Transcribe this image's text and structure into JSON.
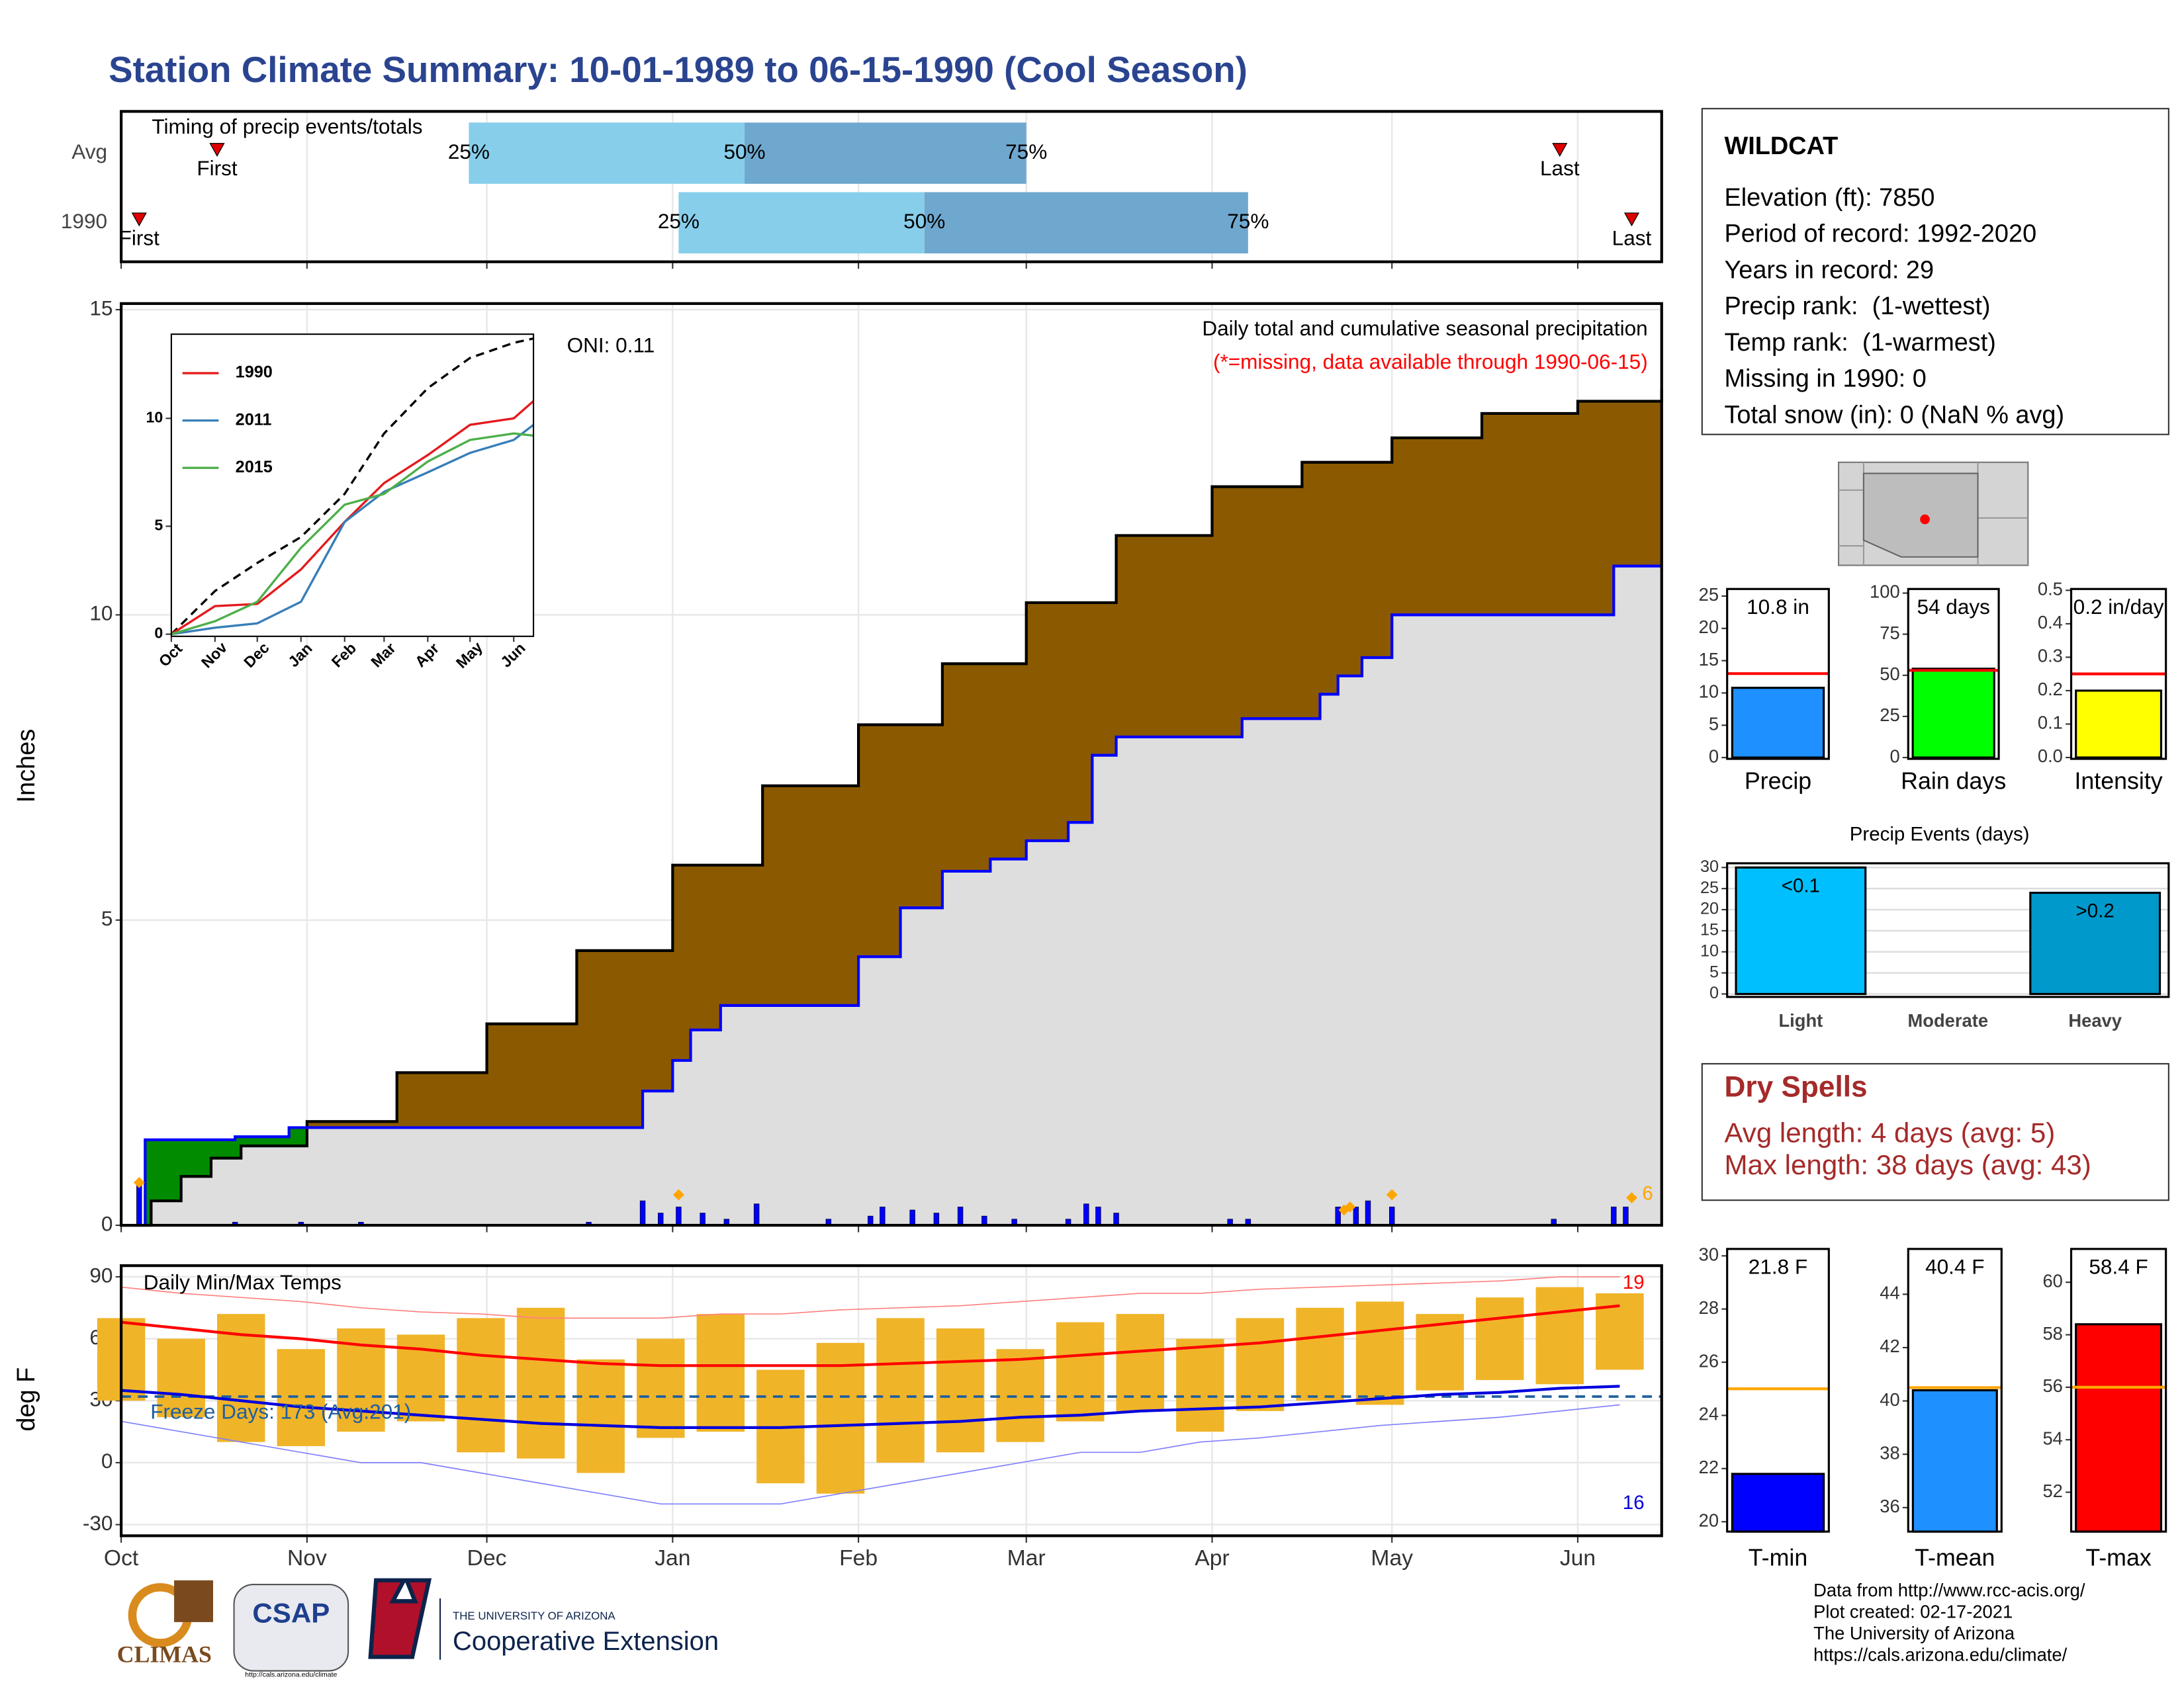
{
  "title": "Station Climate Summary: 10-01-1989 to 06-15-1990 (Cool Season)",
  "station": {
    "name": "WILDCAT",
    "lines": [
      "Elevation (ft): 7850",
      "Period of record: 1992-2020",
      "Years in record: 29",
      "Precip rank:  (1-wettest)",
      "Temp rank:  (1-warmest)",
      "Missing in 1990: 0",
      "Total snow (in): 0 (NaN % avg)"
    ]
  },
  "dry_spells": {
    "title": "Dry Spells",
    "lines": [
      "Avg length: 4 days (avg: 5)",
      "Max length: 38 days (avg: 43)"
    ]
  },
  "footer": [
    "Data from http://www.rcc-acis.org/",
    "Plot created: 02-17-2021",
    "The University of Arizona",
    "https://cals.arizona.edu/climate/"
  ],
  "logos": {
    "climas": "CLIMAS",
    "csap": "CSAP",
    "csap_url": "http://cals.arizona.edu/climate",
    "university": "THE UNIVERSITY OF ARIZONA",
    "extension": "Cooperative Extension"
  },
  "chart_data": [
    {
      "type": "timeline",
      "title": "Timing of precip events/totals",
      "categories": [
        "Avg",
        "1990"
      ],
      "labels": [
        "First",
        "25%",
        "50%",
        "75%",
        "Last"
      ],
      "rows": [
        [
          16,
          58,
          104,
          151,
          240
        ],
        [
          3,
          93,
          134,
          188,
          252
        ]
      ],
      "colors": [
        "#87ceeb",
        "#6fa8cf"
      ],
      "marker_color": "#e00000",
      "xlim": [
        0,
        257
      ],
      "xticks": [
        0,
        31,
        61,
        92,
        123,
        151,
        182,
        212,
        243
      ],
      "grid": true
    },
    {
      "type": "step-area",
      "ylabel": "Inches",
      "subtitle": "Daily total and cumulative seasonal precipitation",
      "note": "(*=missing, data available through 1990-06-15)",
      "oni": "ONI: 0.11",
      "flag_label": "6",
      "xlim": [
        0,
        257
      ],
      "xticks": [
        0,
        31,
        61,
        92,
        123,
        151,
        182,
        212,
        243
      ],
      "ylim": [
        0,
        15.1
      ],
      "yticks": [
        0,
        5,
        10,
        15
      ],
      "grid": true,
      "series": [
        {
          "kind": "step",
          "color": "#000000",
          "fill": "#8b5a00",
          "x": [
            0,
            5,
            10,
            15,
            20,
            31,
            46,
            61,
            76,
            92,
            107,
            123,
            137,
            151,
            166,
            182,
            197,
            212,
            227,
            243,
            257
          ],
          "values": [
            0,
            0.4,
            0.8,
            1.1,
            1.3,
            1.7,
            2.5,
            3.3,
            4.5,
            5.9,
            7.2,
            8.2,
            9.2,
            10.2,
            11.3,
            12.1,
            12.5,
            12.9,
            13.3,
            13.5,
            13.7
          ]
        },
        {
          "kind": "step",
          "color": "#0000ff",
          "fill": "#dedede",
          "fill_above": "#008b00",
          "x": [
            0,
            4,
            19,
            28,
            87,
            92,
            95,
            100,
            123,
            130,
            137,
            145,
            151,
            158,
            162,
            166,
            187,
            200,
            203,
            207,
            212,
            249,
            257
          ],
          "values": [
            0,
            1.4,
            1.45,
            1.6,
            2.2,
            2.7,
            3.2,
            3.6,
            4.4,
            5.2,
            5.8,
            6.0,
            6.3,
            6.6,
            7.7,
            8.0,
            8.3,
            8.7,
            9.0,
            9.3,
            10.0,
            10.8,
            10.8
          ]
        },
        {
          "kind": "bar",
          "color": "#0000ff",
          "x": [
            3,
            19,
            30,
            40,
            78,
            87,
            90,
            93,
            97,
            101,
            106,
            118,
            125,
            127,
            132,
            136,
            140,
            144,
            149,
            158,
            161,
            163,
            166,
            185,
            188,
            203,
            206,
            208,
            212,
            239,
            249,
            251
          ],
          "values": [
            0.7,
            0.05,
            0.05,
            0.05,
            0.05,
            0.4,
            0.2,
            0.3,
            0.2,
            0.1,
            0.35,
            0.1,
            0.15,
            0.3,
            0.25,
            0.2,
            0.3,
            0.15,
            0.1,
            0.1,
            0.35,
            0.3,
            0.2,
            0.1,
            0.1,
            0.3,
            0.3,
            0.4,
            0.3,
            0.1,
            0.3,
            0.3
          ]
        },
        {
          "kind": "points",
          "color": "#ffa500",
          "x": [
            3,
            93,
            204,
            205,
            212,
            252
          ],
          "values": [
            0.7,
            0.5,
            0.25,
            0.3,
            0.5,
            0.45
          ]
        }
      ]
    },
    {
      "type": "line",
      "xlim": [
        0,
        257
      ],
      "xticks": [
        {
          "value": 0,
          "label": "Oct"
        },
        {
          "value": 31,
          "label": "Nov"
        },
        {
          "value": 61,
          "label": "Dec"
        },
        {
          "value": 92,
          "label": "Jan"
        },
        {
          "value": 123,
          "label": "Feb"
        },
        {
          "value": 151,
          "label": "Mar"
        },
        {
          "value": 182,
          "label": "Apr"
        },
        {
          "value": 212,
          "label": "May"
        },
        {
          "value": 243,
          "label": "Jun"
        }
      ],
      "ylim": [
        -0.1,
        13.9
      ],
      "yticks": [
        0,
        5,
        10
      ],
      "x": [
        0,
        31,
        61,
        92,
        123,
        151,
        182,
        212,
        243,
        257
      ],
      "series": [
        {
          "color": "#000000",
          "dash": true,
          "values": [
            0,
            2.0,
            3.3,
            4.5,
            6.5,
            9.3,
            11.4,
            12.8,
            13.5,
            13.7
          ]
        },
        {
          "name": "1990",
          "color": "#e41a1c",
          "values": [
            0,
            1.3,
            1.4,
            3.0,
            5.2,
            7.0,
            8.3,
            9.7,
            10.0,
            10.8
          ]
        },
        {
          "name": "2011",
          "color": "#377eb8",
          "values": [
            0,
            0.3,
            0.5,
            1.5,
            5.2,
            6.6,
            7.5,
            8.4,
            9.0,
            9.7
          ]
        },
        {
          "name": "2015",
          "color": "#4daf4a",
          "values": [
            0,
            0.6,
            1.5,
            4.0,
            6.0,
            6.5,
            8.0,
            9.0,
            9.3,
            9.2
          ]
        }
      ]
    },
    {
      "type": "temps",
      "title": "Daily Min/Max Temps",
      "ylabel": "deg F",
      "freeze_label": "Freeze Days: 173 (Avg:201)",
      "freeze": 32,
      "freeze_color": "#1f5fa0",
      "high_label": "19",
      "low_label": "16",
      "xlim": [
        0,
        257
      ],
      "xticks": [
        {
          "value": 0,
          "label": "Oct"
        },
        {
          "value": 31,
          "label": "Nov"
        },
        {
          "value": 61,
          "label": "Dec"
        },
        {
          "value": 92,
          "label": "Jan"
        },
        {
          "value": 123,
          "label": "Feb"
        },
        {
          "value": 151,
          "label": "Mar"
        },
        {
          "value": 182,
          "label": "Apr"
        },
        {
          "value": 212,
          "label": "May"
        },
        {
          "value": 243,
          "label": "Jun"
        }
      ],
      "ylim": [
        -35.4,
        95.4
      ],
      "yticks": [
        -30,
        0,
        30,
        60,
        90
      ],
      "grid": true,
      "x": [
        0,
        10,
        20,
        30,
        40,
        50,
        60,
        70,
        80,
        90,
        100,
        110,
        120,
        130,
        140,
        150,
        160,
        170,
        180,
        190,
        200,
        210,
        220,
        230,
        240,
        250
      ],
      "series": [
        {
          "kind": "range",
          "color": "#f0b429",
          "values": [
            70,
            60,
            72,
            55,
            65,
            62,
            70,
            75,
            50,
            60,
            72,
            45,
            58,
            70,
            65,
            55,
            68,
            72,
            60,
            70,
            75,
            78,
            72,
            80,
            85,
            82
          ],
          "lows": [
            30,
            22,
            10,
            8,
            15,
            20,
            5,
            2,
            -5,
            12,
            15,
            -10,
            -15,
            0,
            5,
            10,
            20,
            25,
            15,
            25,
            30,
            28,
            35,
            40,
            38,
            45
          ]
        },
        {
          "kind": "line",
          "color": "#ff8080",
          "width": 0.8,
          "values": [
            85,
            82,
            80,
            78,
            75,
            73,
            72,
            70,
            70,
            70,
            72,
            72,
            74,
            75,
            76,
            78,
            80,
            82,
            82,
            84,
            85,
            86,
            87,
            88,
            90,
            90
          ]
        },
        {
          "kind": "line",
          "color": "#8080ff",
          "width": 0.8,
          "values": [
            20,
            15,
            10,
            5,
            0,
            0,
            -5,
            -10,
            -15,
            -20,
            -20,
            -20,
            -15,
            -10,
            -5,
            0,
            5,
            5,
            10,
            12,
            15,
            18,
            20,
            22,
            25,
            28
          ]
        },
        {
          "kind": "line",
          "color": "#ff0000",
          "width": 2,
          "values": [
            68,
            65,
            62,
            60,
            57,
            55,
            52,
            50,
            48,
            47,
            47,
            47,
            47,
            48,
            49,
            50,
            52,
            54,
            56,
            58,
            61,
            64,
            67,
            70,
            73,
            76
          ]
        },
        {
          "kind": "line",
          "color": "#0000dd",
          "width": 2,
          "values": [
            35,
            33,
            30,
            27,
            25,
            23,
            21,
            19,
            18,
            17,
            17,
            17,
            18,
            19,
            20,
            22,
            23,
            25,
            26,
            27,
            29,
            31,
            33,
            34,
            36,
            37
          ]
        }
      ]
    },
    {
      "type": "bar",
      "categories": [
        "Precip"
      ],
      "values": [
        10.8
      ],
      "value_labels": [
        "10.8 in"
      ],
      "average": 13,
      "average_color": "#ff0000",
      "color": "#1e90ff",
      "ylim": [
        -0.2,
        26.1
      ],
      "yticks": [
        0,
        5,
        10,
        15,
        20,
        25
      ]
    },
    {
      "type": "bar",
      "categories": [
        "Rain days"
      ],
      "values": [
        54
      ],
      "value_labels": [
        "54 days"
      ],
      "average": 53,
      "average_color": "#ff0000",
      "color": "#00ff00",
      "ylim": [
        -0.8,
        102.5
      ],
      "yticks": [
        0,
        25,
        50,
        75,
        100
      ]
    },
    {
      "type": "bar",
      "categories": [
        "Intensity"
      ],
      "values": [
        0.2
      ],
      "value_labels": [
        "0.2 in/day"
      ],
      "average": 0.25,
      "average_color": "#ff0000",
      "color": "#ffff00",
      "ylim": [
        -0.004,
        0.504
      ],
      "yticks": [
        {
          "value": 0,
          "label": "0.0"
        },
        0.1,
        0.2,
        0.3,
        0.4,
        0.5
      ]
    },
    {
      "type": "bar",
      "title": "Precip Events (days)",
      "categories": [
        "Light",
        "Moderate",
        "Heavy"
      ],
      "values": [
        30,
        0,
        24
      ],
      "value_labels": [
        "<0.1",
        null,
        ">0.2"
      ],
      "colors": [
        "#00bfff",
        "#00bfff",
        "#0099cc"
      ],
      "ylim": [
        -0.7,
        31
      ],
      "yticks": [
        0,
        5,
        10,
        15,
        20,
        25,
        30
      ],
      "grid": true
    },
    {
      "type": "bar",
      "categories": [
        "T-min"
      ],
      "values": [
        21.8
      ],
      "value_labels": [
        "21.8 F"
      ],
      "average": 25,
      "average_color": "#ffa500",
      "color": "#0000ff",
      "ylim": [
        19.63,
        30.26
      ],
      "yticks": [
        20,
        22,
        24,
        26,
        28,
        30
      ]
    },
    {
      "type": "bar",
      "categories": [
        "T-mean"
      ],
      "values": [
        40.4
      ],
      "value_labels": [
        "40.4 F"
      ],
      "average": 40.5,
      "average_color": "#ffa500",
      "color": "#1e90ff",
      "ylim": [
        35.1,
        45.7
      ],
      "yticks": [
        36,
        38,
        40,
        42,
        44
      ]
    },
    {
      "type": "bar",
      "categories": [
        "T-max"
      ],
      "values": [
        58.4
      ],
      "value_labels": [
        "58.4 F"
      ],
      "average": 56,
      "average_color": "#ffa500",
      "color": "#ff0000",
      "ylim": [
        50.5,
        61.27
      ],
      "yticks": [
        52,
        54,
        56,
        58,
        60
      ]
    }
  ]
}
